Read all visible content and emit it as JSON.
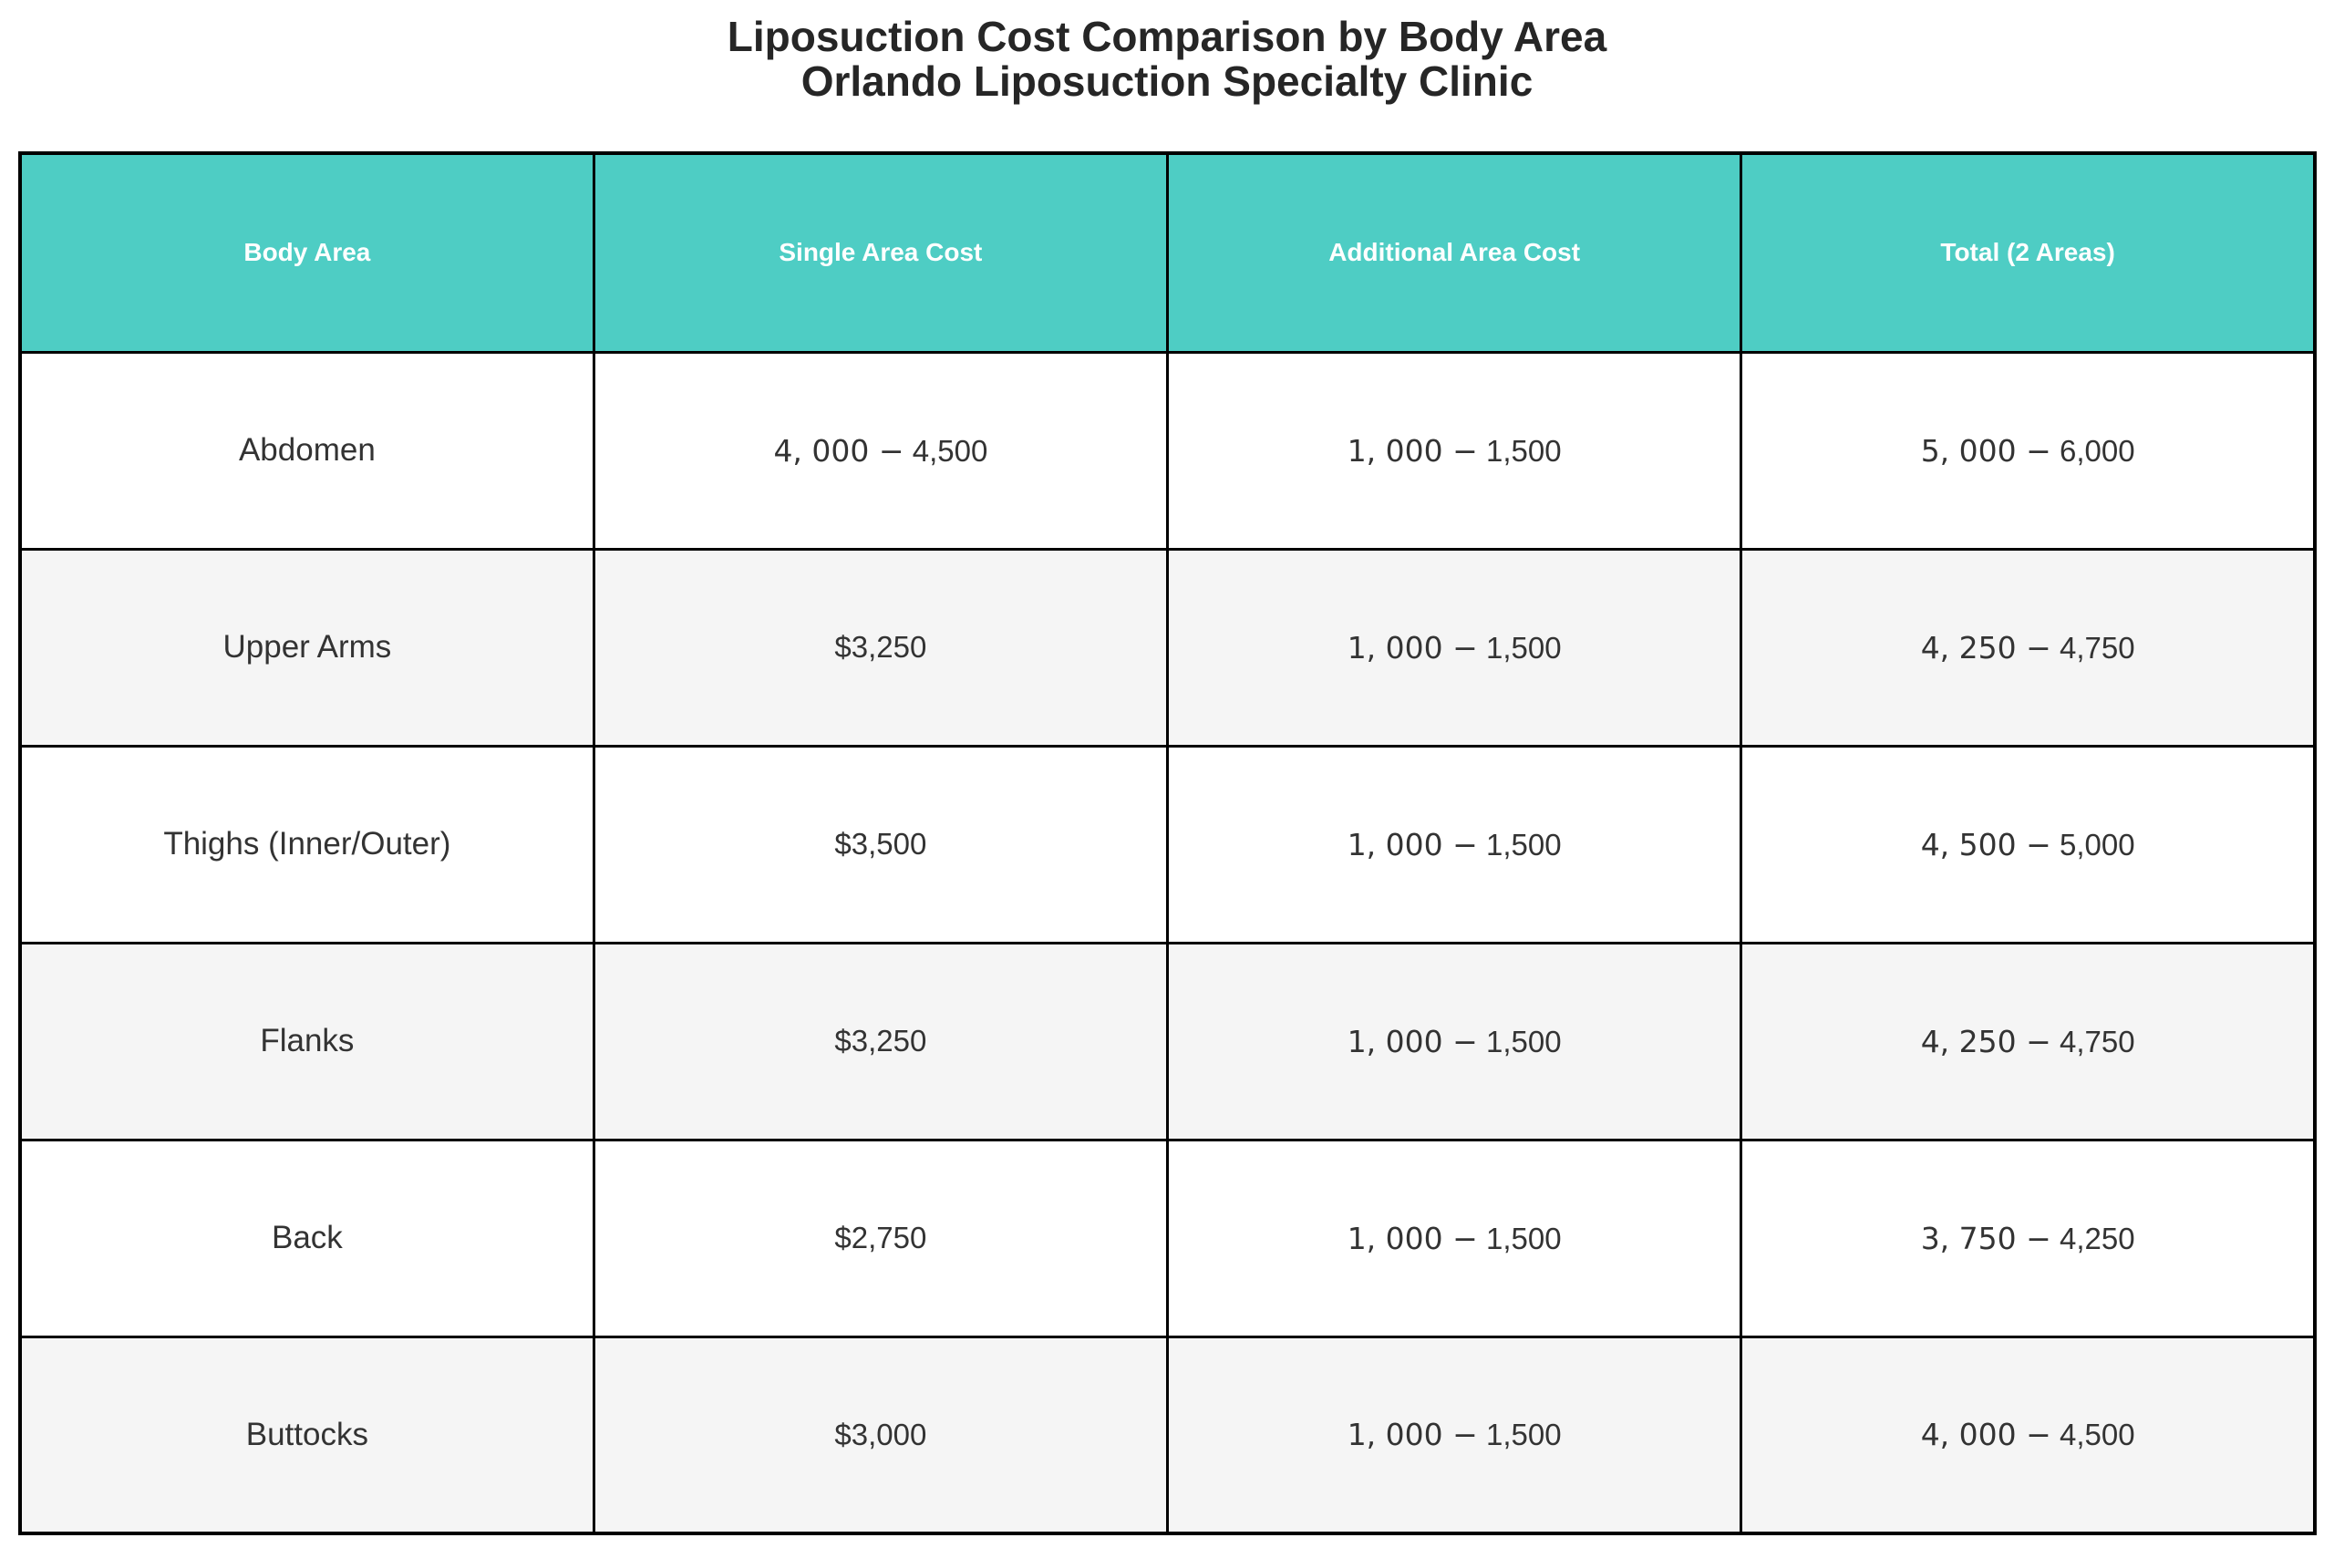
{
  "colors": {
    "header_bg": "#4ECDC4",
    "header_text": "#FFFFFF",
    "body_text": "#333333",
    "title_text": "#262626",
    "row_bg": "#FFFFFF",
    "row_alt_bg": "#F5F5F5",
    "border": "#000000"
  },
  "chart_data": {
    "type": "table",
    "title": "Liposuction Cost Comparison by Body Area",
    "subtitle": "Orlando Liposuction Specialty Clinic",
    "columns": [
      "Body Area",
      "Single Area Cost",
      "Additional Area Cost",
      "Total (2 Areas)"
    ],
    "rows": [
      [
        "Abdomen",
        "4, 000 − 4,500",
        "1, 000 − 1,500",
        "5, 000 − 6,000"
      ],
      [
        "Upper Arms",
        "$3,250",
        "1, 000 − 1,500",
        "4, 250 − 4,750"
      ],
      [
        "Thighs (Inner/Outer)",
        "$3,500",
        "1, 000 − 1,500",
        "4, 500 − 5,000"
      ],
      [
        "Flanks",
        "$3,250",
        "1, 000 − 1,500",
        "4, 250 − 4,750"
      ],
      [
        "Back",
        "$2,750",
        "1, 000 − 1,500",
        "3, 750 − 4,250"
      ],
      [
        "Buttocks",
        "$3,000",
        "1, 000 − 1,500",
        "4, 000 − 4,500"
      ]
    ]
  }
}
